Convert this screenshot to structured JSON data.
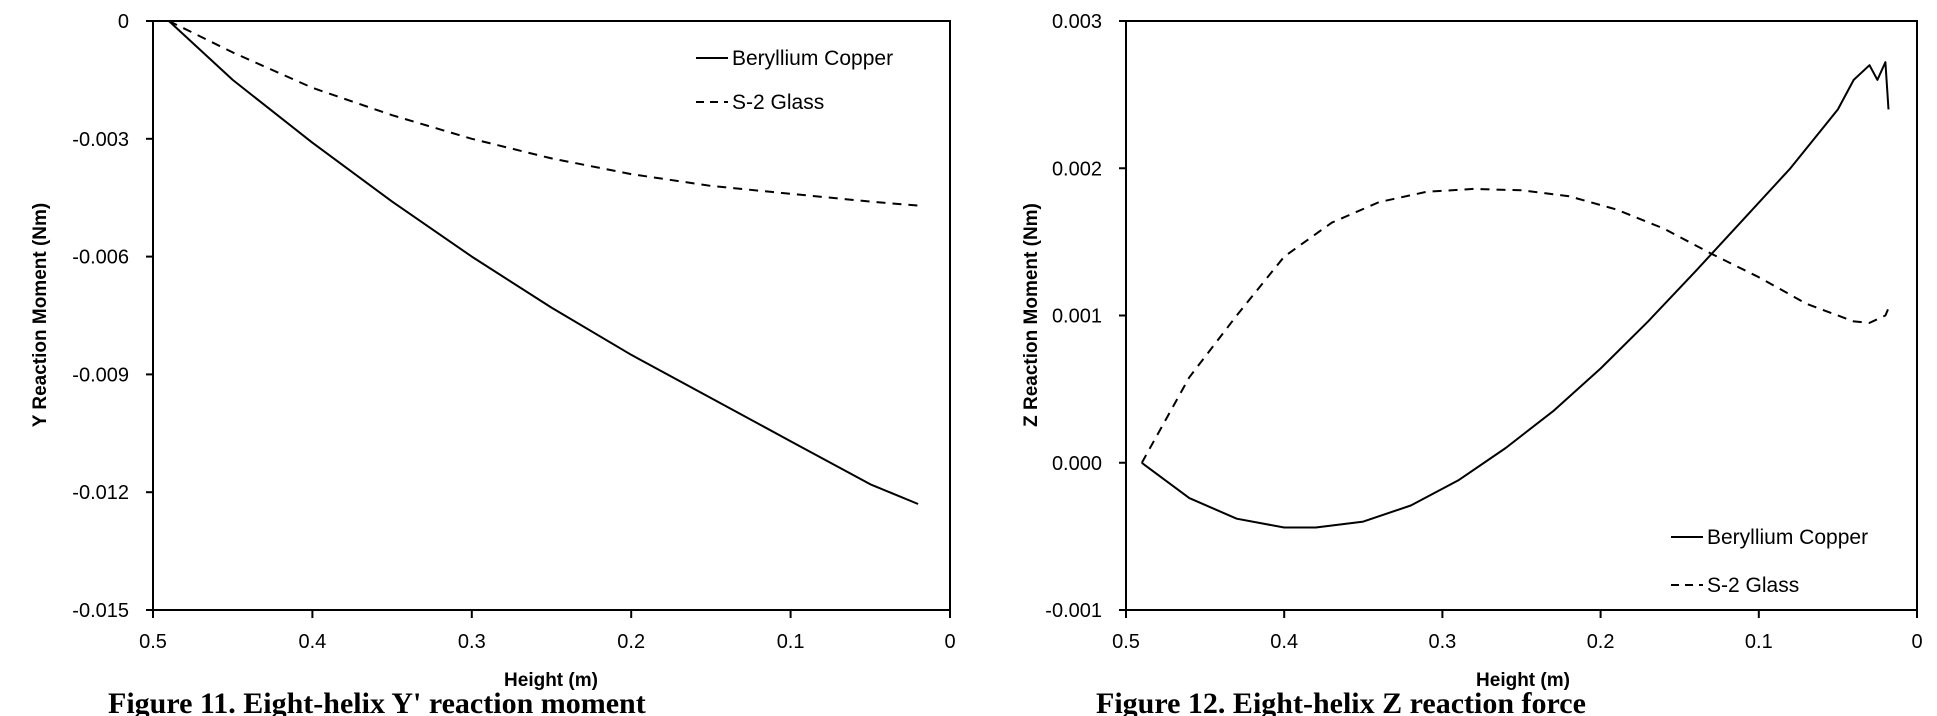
{
  "captions": [
    "Figure 11. Eight-helix Y' reaction moment",
    "Figure 12. Eight-helix Z reaction force"
  ],
  "chart_data": [
    {
      "type": "line",
      "title": "",
      "xlabel": "Height (m)",
      "ylabel": "Y Reaction Moment (Nm)",
      "xlim": [
        0.5,
        0
      ],
      "ylim": [
        -0.015,
        0
      ],
      "x_ticks": [
        "0.5",
        "0.4",
        "0.3",
        "0.2",
        "0.1",
        "0"
      ],
      "y_ticks": [
        "0",
        "-0.003",
        "-0.006",
        "-0.009",
        "-0.012",
        "-0.015"
      ],
      "x_reversed": true,
      "grid": false,
      "legend_position": "top-right",
      "series": [
        {
          "name": "Beryllium Copper",
          "style": "solid",
          "color": "#000000",
          "x": [
            0.49,
            0.45,
            0.4,
            0.35,
            0.3,
            0.25,
            0.2,
            0.15,
            0.1,
            0.05,
            0.02
          ],
          "y": [
            0,
            -0.0015,
            -0.0031,
            -0.0046,
            -0.006,
            -0.0073,
            -0.0085,
            -0.0096,
            -0.0107,
            -0.0118,
            -0.0123
          ]
        },
        {
          "name": "S-2 Glass",
          "style": "dashed",
          "color": "#000000",
          "x": [
            0.49,
            0.45,
            0.4,
            0.35,
            0.3,
            0.25,
            0.2,
            0.15,
            0.1,
            0.05,
            0.02
          ],
          "y": [
            0,
            -0.0008,
            -0.0017,
            -0.0024,
            -0.003,
            -0.0035,
            -0.0039,
            -0.0042,
            -0.0044,
            -0.0046,
            -0.0047
          ]
        }
      ]
    },
    {
      "type": "line",
      "title": "",
      "xlabel": "Height (m)",
      "ylabel": "Z Reaction Moment (Nm)",
      "xlim": [
        0.5,
        0
      ],
      "ylim": [
        -0.001,
        0.003
      ],
      "x_ticks": [
        "0.5",
        "0.4",
        "0.3",
        "0.2",
        "0.1",
        "0"
      ],
      "y_ticks": [
        "0.003",
        "0.002",
        "0.001",
        "0.000",
        "-0.001"
      ],
      "x_reversed": true,
      "grid": false,
      "legend_position": "bottom-right",
      "series": [
        {
          "name": "Beryllium Copper",
          "style": "solid",
          "color": "#000000",
          "x": [
            0.49,
            0.46,
            0.43,
            0.4,
            0.38,
            0.35,
            0.32,
            0.29,
            0.26,
            0.23,
            0.2,
            0.17,
            0.14,
            0.11,
            0.08,
            0.05,
            0.04,
            0.03,
            0.025,
            0.02,
            0.018
          ],
          "y": [
            0.0,
            -0.00024,
            -0.00038,
            -0.00044,
            -0.00044,
            -0.0004,
            -0.00029,
            -0.00012,
            0.0001,
            0.00035,
            0.00064,
            0.00096,
            0.0013,
            0.00165,
            0.002,
            0.0024,
            0.0026,
            0.0027,
            0.0026,
            0.00272,
            0.0024
          ]
        },
        {
          "name": "S-2 Glass",
          "style": "dashed",
          "color": "#000000",
          "x": [
            0.49,
            0.46,
            0.43,
            0.4,
            0.37,
            0.34,
            0.31,
            0.28,
            0.25,
            0.22,
            0.19,
            0.16,
            0.13,
            0.1,
            0.07,
            0.04,
            0.03,
            0.02,
            0.018
          ],
          "y": [
            0.0,
            0.00058,
            0.001,
            0.0014,
            0.00163,
            0.00177,
            0.00184,
            0.00186,
            0.00185,
            0.00181,
            0.00172,
            0.00159,
            0.00142,
            0.00126,
            0.00108,
            0.00096,
            0.00095,
            0.001,
            0.00105
          ]
        }
      ]
    }
  ]
}
